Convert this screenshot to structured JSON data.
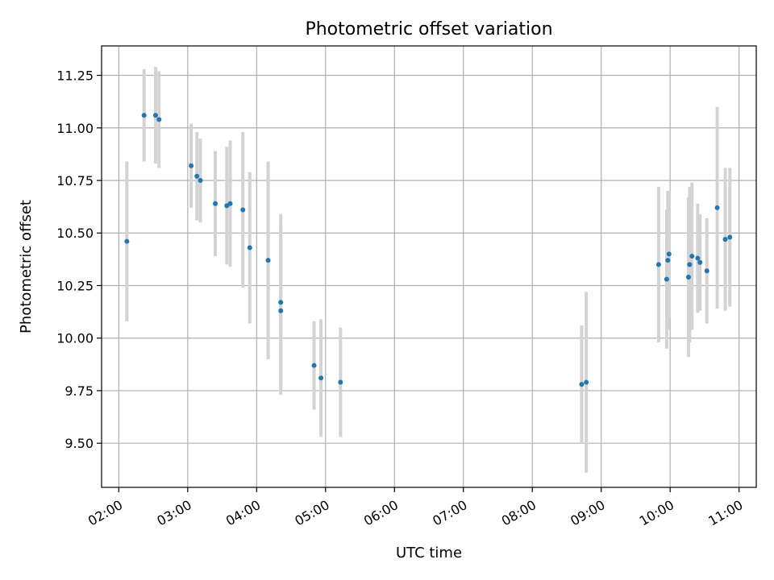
{
  "chart_data": {
    "type": "scatter",
    "title": "Photometric offset variation",
    "xlabel": "UTC time",
    "ylabel": "Photometric offset",
    "xlim": [
      "01:45",
      "11:15"
    ],
    "ylim": [
      9.29,
      11.39
    ],
    "xticks": [
      "02:00",
      "03:00",
      "04:00",
      "05:00",
      "06:00",
      "07:00",
      "08:00",
      "09:00",
      "10:00",
      "11:00"
    ],
    "yticks": [
      "9.50",
      "9.75",
      "10.00",
      "10.25",
      "10.50",
      "10.75",
      "11.00",
      "11.25"
    ],
    "grid": true,
    "colors": {
      "marker": "#1f77b4",
      "errorbar": "#d3d3d3",
      "grid": "#b0b0b0"
    },
    "series": [
      {
        "points": [
          {
            "x": "02:07",
            "y": 10.46,
            "yerr": 0.38
          },
          {
            "x": "02:22",
            "y": 11.06,
            "yerr": 0.22
          },
          {
            "x": "02:32",
            "y": 11.06,
            "yerr": 0.23
          },
          {
            "x": "02:35",
            "y": 11.04,
            "yerr": 0.23
          },
          {
            "x": "03:03",
            "y": 10.82,
            "yerr": 0.2
          },
          {
            "x": "03:08",
            "y": 10.77,
            "yerr": 0.21
          },
          {
            "x": "03:11",
            "y": 10.75,
            "yerr": 0.2
          },
          {
            "x": "03:24",
            "y": 10.64,
            "yerr": 0.25
          },
          {
            "x": "03:34",
            "y": 10.63,
            "yerr": 0.28
          },
          {
            "x": "03:37",
            "y": 10.64,
            "yerr": 0.3
          },
          {
            "x": "03:48",
            "y": 10.61,
            "yerr": 0.37
          },
          {
            "x": "03:54",
            "y": 10.43,
            "yerr": 0.36
          },
          {
            "x": "04:10",
            "y": 10.37,
            "yerr": 0.47
          },
          {
            "x": "04:21",
            "y": 10.17,
            "yerr": 0.42
          },
          {
            "x": "04:21",
            "y": 10.13,
            "yerr": 0.4
          },
          {
            "x": "04:50",
            "y": 9.87,
            "yerr": 0.21
          },
          {
            "x": "04:56",
            "y": 9.81,
            "yerr": 0.28
          },
          {
            "x": "05:13",
            "y": 9.79,
            "yerr": 0.26
          },
          {
            "x": "08:43",
            "y": 9.78,
            "yerr": 0.28
          },
          {
            "x": "08:47",
            "y": 9.79,
            "yerr": 0.43
          },
          {
            "x": "09:50",
            "y": 10.35,
            "yerr": 0.37
          },
          {
            "x": "09:57",
            "y": 10.28,
            "yerr": 0.33
          },
          {
            "x": "09:58",
            "y": 10.37,
            "yerr": 0.33
          },
          {
            "x": "09:59",
            "y": 10.4,
            "yerr": 0.3
          },
          {
            "x": "10:16",
            "y": 10.29,
            "yerr": 0.38
          },
          {
            "x": "10:17",
            "y": 10.35,
            "yerr": 0.37
          },
          {
            "x": "10:19",
            "y": 10.39,
            "yerr": 0.35
          },
          {
            "x": "10:24",
            "y": 10.38,
            "yerr": 0.26
          },
          {
            "x": "10:26",
            "y": 10.36,
            "yerr": 0.23
          },
          {
            "x": "10:32",
            "y": 10.32,
            "yerr": 0.25
          },
          {
            "x": "10:41",
            "y": 10.62,
            "yerr": 0.48
          },
          {
            "x": "10:48",
            "y": 10.47,
            "yerr": 0.34
          },
          {
            "x": "10:52",
            "y": 10.48,
            "yerr": 0.33
          }
        ]
      }
    ]
  }
}
